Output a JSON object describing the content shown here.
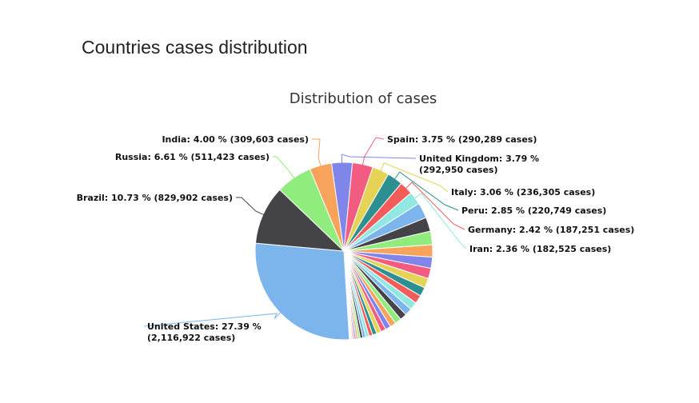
{
  "page": {
    "title": "Countries cases distribution"
  },
  "chart_data": {
    "type": "pie",
    "title": "Distribution of cases",
    "labeled_slices": [
      {
        "label_lines": [
          "United States: 27.39 %",
          "(2,116,922 cases)"
        ],
        "percent": 27.39,
        "cases": 2116922,
        "color": "#7cb5ec"
      },
      {
        "label_lines": [
          "Brazil: 10.73 % (829,902 cases)"
        ],
        "percent": 10.73,
        "cases": 829902,
        "color": "#434348"
      },
      {
        "label_lines": [
          "Russia: 6.61 % (511,423 cases)"
        ],
        "percent": 6.61,
        "cases": 511423,
        "color": "#90ed7d"
      },
      {
        "label_lines": [
          "India: 4.00 % (309,603 cases)"
        ],
        "percent": 4.0,
        "cases": 309603,
        "color": "#f7a35c"
      },
      {
        "label_lines": [
          "United Kingdom: 3.79 %",
          "(292,950 cases)"
        ],
        "percent": 3.79,
        "cases": 292950,
        "color": "#8085e9"
      },
      {
        "label_lines": [
          "Spain: 3.75 % (290,289 cases)"
        ],
        "percent": 3.75,
        "cases": 290289,
        "color": "#f15c80"
      },
      {
        "label_lines": [
          "Italy: 3.06 % (236,305 cases)"
        ],
        "percent": 3.06,
        "cases": 236305,
        "color": "#e4d354"
      },
      {
        "label_lines": [
          "Peru: 2.85 % (220,749 cases)"
        ],
        "percent": 2.85,
        "cases": 220749,
        "color": "#2b908f"
      },
      {
        "label_lines": [
          "Germany: 2.42 % (187,251 cases)"
        ],
        "percent": 2.42,
        "cases": 187251,
        "color": "#f45b5b"
      },
      {
        "label_lines": [
          "Iran: 2.36 % (182,525 cases)"
        ],
        "percent": 2.36,
        "cases": 182525,
        "color": "#91e8e1"
      }
    ],
    "unlabeled_slices_percent": [
      2.1,
      1.9,
      1.8,
      1.65,
      1.5,
      1.4,
      1.3,
      1.2,
      1.12,
      1.05,
      0.98,
      0.92,
      0.86,
      0.8,
      0.74,
      0.68,
      0.62,
      0.56,
      0.5,
      0.45,
      0.4,
      0.35,
      0.3,
      0.26,
      0.22,
      0.19,
      0.16,
      0.13,
      0.11,
      0.09
    ],
    "palette": [
      "#7cb5ec",
      "#434348",
      "#90ed7d",
      "#f7a35c",
      "#8085e9",
      "#f15c80",
      "#e4d354",
      "#2b908f",
      "#f45b5b",
      "#91e8e1"
    ],
    "legend": "none"
  }
}
